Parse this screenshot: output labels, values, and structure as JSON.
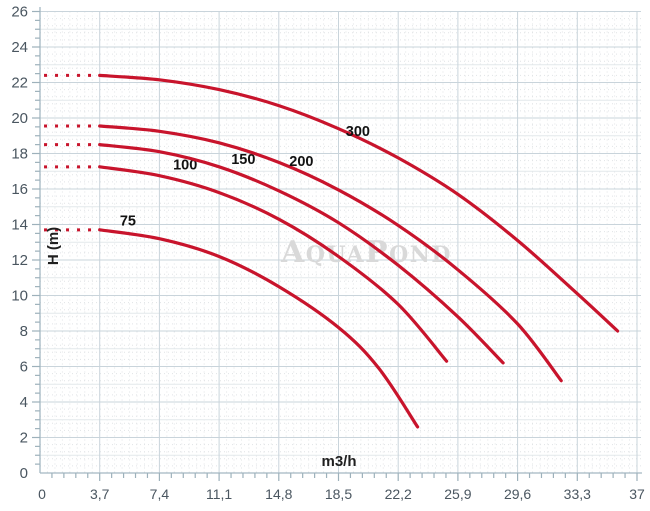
{
  "watermark": {
    "text": "AquaPond"
  },
  "colors": {
    "background": "#ffffff",
    "curve": "#c8142c",
    "grid_major": "#c9d4db",
    "grid_unit": "#e4e9ec",
    "grid_minor": "#e1e4e6",
    "axis": "#a5b8c2",
    "tick": "#9db1bb",
    "tick_label": "#4a5660",
    "curve_label": "#121212",
    "axis_title": "#1f1f1f",
    "watermark": "#d9d9d9"
  },
  "chart_data": {
    "type": "line",
    "title": "",
    "xlabel": "m3/h",
    "ylabel": "H (m)",
    "xlim": [
      0,
      37
    ],
    "ylim": [
      0,
      26
    ],
    "x_major_step": 3.7,
    "y_major_step": 2,
    "x_ticks": [
      0,
      3.7,
      7.4,
      11.1,
      14.8,
      18.5,
      22.2,
      25.9,
      29.6,
      33.3,
      37
    ],
    "x_tick_labels": [
      "0",
      "3,7",
      "7,4",
      "11,1",
      "14,8",
      "18,5",
      "22,2",
      "25,9",
      "29,6",
      "33,3",
      "37"
    ],
    "y_ticks": [
      0,
      2,
      4,
      6,
      8,
      10,
      12,
      14,
      16,
      18,
      20,
      22,
      24,
      26
    ],
    "y_tick_labels": [
      "0",
      "2",
      "4",
      "6",
      "8",
      "10",
      "12",
      "14",
      "16",
      "18",
      "20",
      "22",
      "24",
      "26"
    ],
    "grid": true,
    "legend": "inline-labels",
    "series": [
      {
        "name": "75",
        "label_anchor": [
          5.45,
          13.95
        ],
        "head": {
          "x_start": 0.25,
          "x_end": 3.55,
          "H": 13.7
        },
        "points": [
          [
            3.7,
            13.7
          ],
          [
            7.4,
            13.2
          ],
          [
            11.1,
            12.2
          ],
          [
            14.8,
            10.5
          ],
          [
            18.5,
            8.2
          ],
          [
            21.0,
            5.9
          ],
          [
            23.4,
            2.6
          ]
        ]
      },
      {
        "name": "100",
        "label_anchor": [
          9.0,
          17.1
        ],
        "head": {
          "x_start": 0.25,
          "x_end": 3.55,
          "H": 17.25
        },
        "points": [
          [
            3.7,
            17.25
          ],
          [
            7.4,
            16.75
          ],
          [
            11.1,
            15.8
          ],
          [
            14.8,
            14.3
          ],
          [
            18.5,
            12.2
          ],
          [
            22.2,
            9.5
          ],
          [
            25.2,
            6.3
          ]
        ]
      },
      {
        "name": "150",
        "label_anchor": [
          12.6,
          17.4
        ],
        "head": {
          "x_start": 0.25,
          "x_end": 3.55,
          "H": 18.5
        },
        "points": [
          [
            3.7,
            18.5
          ],
          [
            7.4,
            18.1
          ],
          [
            11.1,
            17.25
          ],
          [
            14.8,
            15.9
          ],
          [
            18.5,
            14.1
          ],
          [
            22.2,
            11.7
          ],
          [
            25.9,
            8.8
          ],
          [
            28.7,
            6.2
          ]
        ]
      },
      {
        "name": "200",
        "label_anchor": [
          16.2,
          17.3
        ],
        "head": {
          "x_start": 0.25,
          "x_end": 3.55,
          "H": 19.55
        },
        "points": [
          [
            3.7,
            19.55
          ],
          [
            7.4,
            19.25
          ],
          [
            11.1,
            18.6
          ],
          [
            14.8,
            17.5
          ],
          [
            18.5,
            15.95
          ],
          [
            22.2,
            13.95
          ],
          [
            25.9,
            11.45
          ],
          [
            29.6,
            8.4
          ],
          [
            32.3,
            5.2
          ]
        ]
      },
      {
        "name": "300",
        "label_anchor": [
          19.7,
          19.0
        ],
        "head": {
          "x_start": 0.25,
          "x_end": 3.55,
          "H": 22.4
        },
        "points": [
          [
            3.7,
            22.4
          ],
          [
            7.4,
            22.15
          ],
          [
            11.1,
            21.6
          ],
          [
            14.8,
            20.7
          ],
          [
            18.5,
            19.4
          ],
          [
            22.2,
            17.75
          ],
          [
            25.9,
            15.7
          ],
          [
            29.6,
            13.1
          ],
          [
            33.3,
            10.1
          ],
          [
            35.8,
            8.0
          ]
        ]
      }
    ]
  }
}
